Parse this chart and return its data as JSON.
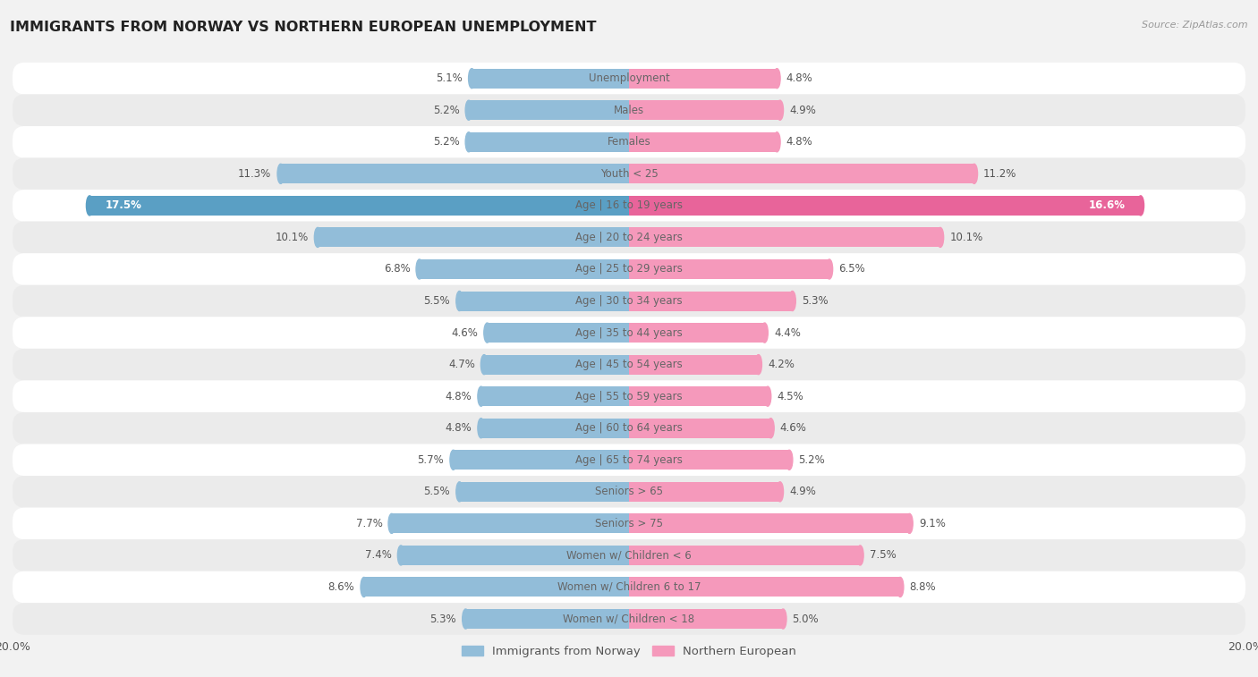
{
  "title": "IMMIGRANTS FROM NORWAY VS NORTHERN EUROPEAN UNEMPLOYMENT",
  "source": "Source: ZipAtlas.com",
  "categories": [
    "Unemployment",
    "Males",
    "Females",
    "Youth < 25",
    "Age | 16 to 19 years",
    "Age | 20 to 24 years",
    "Age | 25 to 29 years",
    "Age | 30 to 34 years",
    "Age | 35 to 44 years",
    "Age | 45 to 54 years",
    "Age | 55 to 59 years",
    "Age | 60 to 64 years",
    "Age | 65 to 74 years",
    "Seniors > 65",
    "Seniors > 75",
    "Women w/ Children < 6",
    "Women w/ Children 6 to 17",
    "Women w/ Children < 18"
  ],
  "norway_values": [
    5.1,
    5.2,
    5.2,
    11.3,
    17.5,
    10.1,
    6.8,
    5.5,
    4.6,
    4.7,
    4.8,
    4.8,
    5.7,
    5.5,
    7.7,
    7.4,
    8.6,
    5.3
  ],
  "northern_eu_values": [
    4.8,
    4.9,
    4.8,
    11.2,
    16.6,
    10.1,
    6.5,
    5.3,
    4.4,
    4.2,
    4.5,
    4.6,
    5.2,
    4.9,
    9.1,
    7.5,
    8.8,
    5.0
  ],
  "norway_color": "#92bdd9",
  "northern_eu_color": "#f599bb",
  "norway_highlight_color": "#5a9fc4",
  "northern_eu_highlight_color": "#e8649a",
  "bg_color": "#f2f2f2",
  "row_colors": [
    "#ffffff",
    "#ebebeb"
  ],
  "xlim": 20.0,
  "legend_norway": "Immigrants from Norway",
  "legend_northern_eu": "Northern European",
  "bar_height": 0.62,
  "highlight_index": 4,
  "label_color": "#555555",
  "center_label_color": "#666666"
}
